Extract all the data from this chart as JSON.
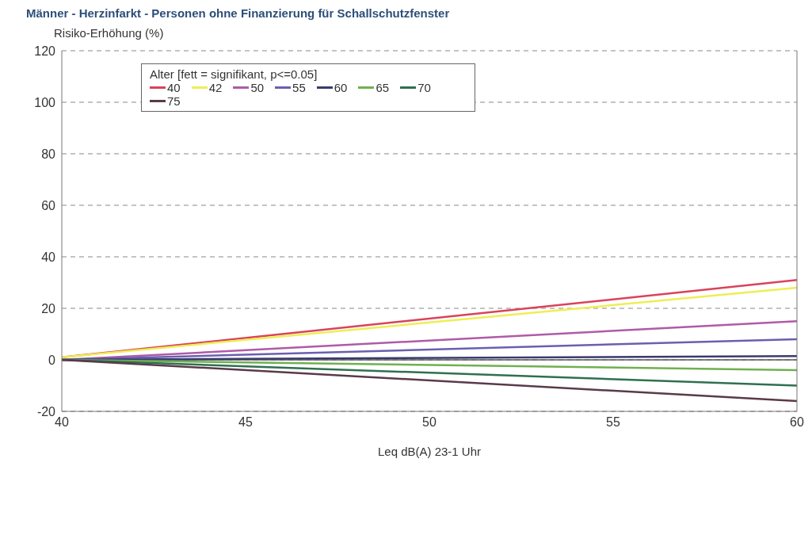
{
  "chart_data": {
    "type": "line",
    "title": "Männer - Herzinfarkt - Personen ohne Finanzierung für Schallschutzfenster",
    "ylabel": "Risiko-Erhöhung (%)",
    "xlabel": "Leq dB(A) 23-1 Uhr",
    "legend_title": "Alter [fett = signifikant, p<=0.05]",
    "x": [
      40,
      60
    ],
    "series": [
      {
        "name": "40",
        "color": "#d9435a",
        "values": [
          1,
          31
        ]
      },
      {
        "name": "42",
        "color": "#eeee55",
        "values": [
          1,
          28
        ]
      },
      {
        "name": "50",
        "color": "#b05aa8",
        "values": [
          0,
          15
        ]
      },
      {
        "name": "55",
        "color": "#6a5fb0",
        "values": [
          0,
          8
        ]
      },
      {
        "name": "60",
        "color": "#3a3a70",
        "values": [
          0,
          1.5
        ]
      },
      {
        "name": "65",
        "color": "#70b050",
        "values": [
          0,
          -4
        ]
      },
      {
        "name": "70",
        "color": "#2f7050",
        "values": [
          0,
          -10
        ]
      },
      {
        "name": "75",
        "color": "#5a3a4a",
        "values": [
          0,
          -16
        ]
      }
    ],
    "xlim": [
      40,
      60
    ],
    "xticks": [
      40,
      45,
      50,
      55,
      60
    ],
    "ylim": [
      -20,
      120
    ],
    "yticks": [
      -20,
      0,
      20,
      40,
      60,
      80,
      100,
      120
    ],
    "grid": "y",
    "legend": "top",
    "marker": "none",
    "line_style": "solid",
    "ref_lines": [
      {
        "axis": "y",
        "value": 0,
        "color": "#555555"
      }
    ]
  }
}
